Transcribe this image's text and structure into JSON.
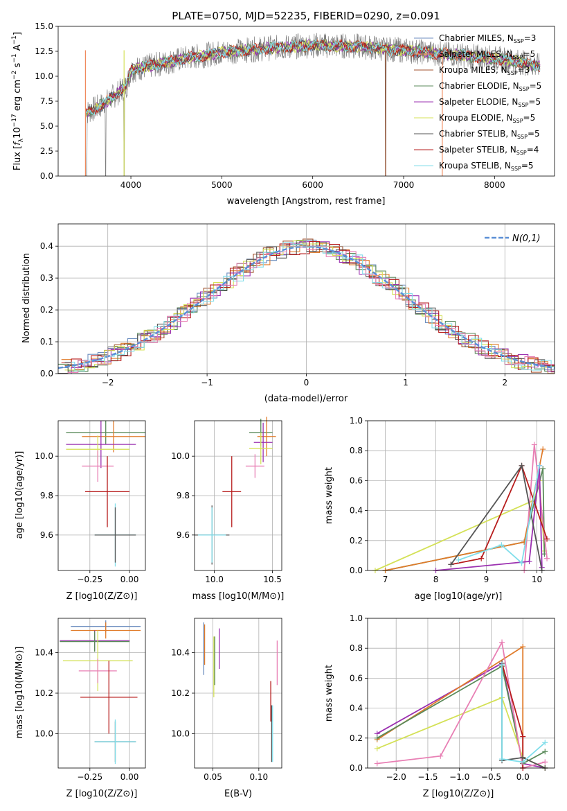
{
  "colors": {
    "chabrier_miles": "#6c8ebf",
    "salpeter_miles": "#f08a5d",
    "kroupa_miles": "#a0522d",
    "chabrier_elodie": "#5a8a5a",
    "salpeter_elodie": "#9b30b0",
    "kroupa_elodie": "#d4e157",
    "chabrier_stelib": "#555555",
    "salpeter_stelib": "#b71c1c",
    "kroupa_stelib": "#80deea",
    "pink": "#e87fb4",
    "orange": "#e07b2a",
    "normal": "#5b8fd6"
  },
  "chart_data": [
    {
      "id": "spectrum",
      "type": "line",
      "title": "PLATE=0750, MJD=52235, FIBERID=0290, z=0.091",
      "xlabel": "wavelength [Angstrom, rest frame]",
      "ylabel": "Flux [f_λ10^-17 erg cm^-2 s^-1 A^-1]",
      "xlim": [
        3200,
        8660
      ],
      "ylim": [
        0,
        15
      ],
      "xticks": [
        4000,
        5000,
        6000,
        7000,
        8000
      ],
      "yticks": [
        0.0,
        2.5,
        5.0,
        7.5,
        10.0,
        12.5,
        15.0
      ],
      "grid": false,
      "legend": "right",
      "continuum": [
        [
          3500,
          6.3
        ],
        [
          3700,
          7.2
        ],
        [
          3950,
          9.0
        ],
        [
          4000,
          10.6
        ],
        [
          4300,
          11.2
        ],
        [
          4600,
          11.8
        ],
        [
          5000,
          12.4
        ],
        [
          5500,
          12.8
        ],
        [
          6000,
          13.1
        ],
        [
          6500,
          13.0
        ],
        [
          7000,
          12.6
        ],
        [
          7500,
          12.2
        ],
        [
          8000,
          11.8
        ],
        [
          8300,
          11.4
        ],
        [
          8500,
          11.0
        ]
      ],
      "series": [
        {
          "name": "Chabrier MILES, N_SSP=3",
          "color_key": "chabrier_miles"
        },
        {
          "name": "Salpeter MILES, N_SSP=5",
          "color_key": "salpeter_miles"
        },
        {
          "name": "Kroupa MILES, N_SSP=3",
          "color_key": "kroupa_miles"
        },
        {
          "name": "Chabrier ELODIE, N_SSP=5",
          "color_key": "chabrier_elodie"
        },
        {
          "name": "Salpeter ELODIE, N_SSP=5",
          "color_key": "salpeter_elodie"
        },
        {
          "name": "Kroupa ELODIE, N_SSP=5",
          "color_key": "kroupa_elodie"
        },
        {
          "name": "Chabrier STELIB, N_SSP=5",
          "color_key": "chabrier_stelib"
        },
        {
          "name": "Salpeter STELIB, N_SSP=4",
          "color_key": "salpeter_stelib"
        },
        {
          "name": "Kroupa STELIB, N_SSP=5",
          "color_key": "kroupa_stelib"
        }
      ]
    },
    {
      "id": "residuals",
      "type": "area",
      "xlabel": "(data-model)/error",
      "ylabel": "Normed distribution",
      "xlim": [
        -2.5,
        2.5
      ],
      "ylim": [
        0,
        0.47
      ],
      "xticks": [
        -2,
        -1,
        0,
        1,
        2
      ],
      "yticks": [
        0.0,
        0.1,
        0.2,
        0.3,
        0.4
      ],
      "grid": true,
      "legend": "top-right",
      "normal_label": "N(0,1)"
    },
    {
      "id": "age_vs_z",
      "type": "scatter",
      "xlabel": "Z [log10(Z/Z⊙)]",
      "ylabel": "age [log10(age/yr)]",
      "xlim": [
        -0.45,
        0.1
      ],
      "ylim": [
        9.42,
        10.18
      ],
      "xticks": [
        -0.25,
        0.0
      ],
      "xtick_labels": [
        "−0.25",
        "0.00"
      ],
      "yticks": [
        9.6,
        9.8,
        10.0
      ],
      "grid": true,
      "points": [
        {
          "x": -0.15,
          "y": 10.12,
          "xerr": 0.25,
          "yerr": 0.06,
          "color_key": "chabrier_elodie"
        },
        {
          "x": -0.1,
          "y": 10.1,
          "xerr": 0.2,
          "yerr": 0.08,
          "color_key": "orange"
        },
        {
          "x": -0.18,
          "y": 10.06,
          "xerr": 0.22,
          "yerr": 0.12,
          "color_key": "salpeter_elodie"
        },
        {
          "x": -0.2,
          "y": 10.035,
          "xerr": 0.2,
          "yerr": 0.07,
          "color_key": "kroupa_elodie"
        },
        {
          "x": -0.2,
          "y": 9.95,
          "xerr": 0.1,
          "yerr": 0.08,
          "color_key": "pink"
        },
        {
          "x": -0.14,
          "y": 9.82,
          "xerr": 0.14,
          "yerr": 0.18,
          "color_key": "salpeter_stelib"
        },
        {
          "x": -0.09,
          "y": 9.6,
          "xerr": 0.13,
          "yerr": 0.16,
          "color_key": "kroupa_stelib"
        },
        {
          "x": -0.09,
          "y": 9.6,
          "xerr": 0.13,
          "yerr": 0.14,
          "color_key": "chabrier_stelib"
        }
      ]
    },
    {
      "id": "age_vs_mass",
      "type": "scatter",
      "xlabel": "mass [log10(M/M⊙)]",
      "xlim": [
        9.83,
        10.58
      ],
      "ylim": [
        9.42,
        10.18
      ],
      "xticks": [
        10.0,
        10.5
      ],
      "xtick_labels": [
        "10.0",
        "10.5"
      ],
      "yticks": [
        9.6,
        9.8,
        10.0
      ],
      "grid": true,
      "points": [
        {
          "x": 10.4,
          "y": 10.12,
          "xerr": 0.1,
          "yerr": 0.07,
          "color_key": "chabrier_elodie"
        },
        {
          "x": 10.45,
          "y": 10.1,
          "xerr": 0.08,
          "yerr": 0.1,
          "color_key": "orange"
        },
        {
          "x": 10.42,
          "y": 10.07,
          "xerr": 0.08,
          "yerr": 0.1,
          "color_key": "salpeter_elodie"
        },
        {
          "x": 10.4,
          "y": 10.04,
          "xerr": 0.1,
          "yerr": 0.08,
          "color_key": "kroupa_elodie"
        },
        {
          "x": 10.35,
          "y": 9.95,
          "xerr": 0.08,
          "yerr": 0.06,
          "color_key": "pink"
        },
        {
          "x": 10.15,
          "y": 9.82,
          "xerr": 0.08,
          "yerr": 0.18,
          "color_key": "salpeter_stelib"
        },
        {
          "x": 9.98,
          "y": 9.6,
          "xerr": 0.15,
          "yerr": 0.15,
          "color_key": "chabrier_stelib"
        },
        {
          "x": 9.98,
          "y": 9.6,
          "xerr": 0.12,
          "yerr": 0.14,
          "color_key": "kroupa_stelib"
        }
      ]
    },
    {
      "id": "weight_vs_age",
      "type": "line",
      "xlabel": "age [log10(age/yr)]",
      "ylabel": "mass weight",
      "xlim": [
        6.65,
        10.35
      ],
      "ylim": [
        0,
        1
      ],
      "xticks": [
        7,
        8,
        9,
        10
      ],
      "yticks": [
        0.0,
        0.2,
        0.4,
        0.6,
        0.8,
        1.0
      ],
      "grid": true,
      "series": [
        {
          "color_key": "kroupa_elodie",
          "x": [
            6.8,
            9.95,
            10.05,
            10.15
          ],
          "y": [
            0.0,
            0.47,
            0.6,
            0.13
          ]
        },
        {
          "color_key": "chabrier_elodie",
          "x": [
            7.0,
            9.75,
            10.12,
            10.15
          ],
          "y": [
            0.0,
            0.19,
            0.68,
            0.11
          ]
        },
        {
          "color_key": "orange",
          "x": [
            7.0,
            9.75,
            10.12
          ],
          "y": [
            0.0,
            0.19,
            0.81
          ]
        },
        {
          "color_key": "pink",
          "x": [
            9.75,
            9.95,
            10.2
          ],
          "y": [
            0.0,
            0.84,
            0.08
          ]
        },
        {
          "color_key": "salpeter_elodie",
          "x": [
            8.0,
            9.85,
            10.05,
            10.1
          ],
          "y": [
            0.0,
            0.06,
            0.7,
            0.02
          ]
        },
        {
          "color_key": "salpeter_stelib",
          "x": [
            8.3,
            8.9,
            9.7,
            10.2
          ],
          "y": [
            0.04,
            0.08,
            0.7,
            0.21
          ]
        },
        {
          "color_key": "chabrier_stelib",
          "x": [
            8.3,
            9.7,
            10.1
          ],
          "y": [
            0.04,
            0.7,
            0.0
          ]
        },
        {
          "color_key": "kroupa_stelib",
          "x": [
            8.45,
            9.3,
            9.7,
            10.05
          ],
          "y": [
            0.07,
            0.17,
            0.05,
            0.7
          ]
        }
      ]
    },
    {
      "id": "mass_vs_z",
      "type": "scatter",
      "xlabel": "Z [log10(Z/Z⊙)]",
      "ylabel": "mass [log10(M/M⊙)]",
      "xlim": [
        -0.45,
        0.1
      ],
      "ylim": [
        9.83,
        10.57
      ],
      "xticks": [
        -0.25,
        0.0
      ],
      "xtick_labels": [
        "−0.25",
        "0.00"
      ],
      "yticks": [
        10.0,
        10.2,
        10.4
      ],
      "grid": true,
      "points": [
        {
          "x": -0.15,
          "y": 10.53,
          "xerr": 0.22,
          "yerr": 0.03,
          "color_key": "chabrier_miles"
        },
        {
          "x": -0.15,
          "y": 10.51,
          "xerr": 0.22,
          "yerr": 0.04,
          "color_key": "orange"
        },
        {
          "x": -0.22,
          "y": 10.46,
          "xerr": 0.22,
          "yerr": 0.05,
          "color_key": "salpeter_elodie"
        },
        {
          "x": -0.22,
          "y": 10.455,
          "xerr": 0.22,
          "yerr": 0.05,
          "color_key": "chabrier_elodie"
        },
        {
          "x": -0.2,
          "y": 10.36,
          "xerr": 0.22,
          "yerr": 0.15,
          "color_key": "kroupa_elodie"
        },
        {
          "x": -0.2,
          "y": 10.31,
          "xerr": 0.12,
          "yerr": 0.06,
          "color_key": "pink"
        },
        {
          "x": -0.13,
          "y": 10.18,
          "xerr": 0.18,
          "yerr": 0.18,
          "color_key": "salpeter_stelib"
        },
        {
          "x": -0.09,
          "y": 9.96,
          "xerr": 0.13,
          "yerr": 0.1,
          "color_key": "chabrier_stelib"
        },
        {
          "x": -0.09,
          "y": 9.96,
          "xerr": 0.13,
          "yerr": 0.11,
          "color_key": "kroupa_stelib"
        }
      ]
    },
    {
      "id": "mass_vs_ebv",
      "type": "scatter",
      "xlabel": "E(B-V)",
      "xlim": [
        0.03,
        0.125
      ],
      "ylim": [
        9.83,
        10.57
      ],
      "xticks": [
        0.05,
        0.1
      ],
      "xtick_labels": [
        "0.05",
        "0.10"
      ],
      "yticks": [
        10.0,
        10.2,
        10.4
      ],
      "grid": true,
      "points": [
        {
          "x": 0.04,
          "y": 10.42,
          "yerr": 0.13,
          "color_key": "chabrier_miles"
        },
        {
          "x": 0.041,
          "y": 10.44,
          "yerr": 0.1,
          "color_key": "orange"
        },
        {
          "x": 0.051,
          "y": 10.33,
          "yerr": 0.15,
          "color_key": "kroupa_elodie"
        },
        {
          "x": 0.052,
          "y": 10.36,
          "yerr": 0.12,
          "color_key": "chabrier_elodie"
        },
        {
          "x": 0.057,
          "y": 10.42,
          "yerr": 0.1,
          "color_key": "salpeter_elodie"
        },
        {
          "x": 0.113,
          "y": 10.16,
          "yerr": 0.1,
          "color_key": "salpeter_stelib"
        },
        {
          "x": 0.114,
          "y": 10.0,
          "yerr": 0.14,
          "color_key": "chabrier_stelib"
        },
        {
          "x": 0.115,
          "y": 10.0,
          "yerr": 0.14,
          "color_key": "kroupa_stelib"
        },
        {
          "x": 0.12,
          "y": 10.35,
          "yerr": 0.11,
          "color_key": "pink"
        }
      ]
    },
    {
      "id": "weight_vs_z",
      "type": "line",
      "xlabel": "Z [log10(Z/Z⊙)]",
      "ylabel": "mass weight",
      "xlim": [
        -2.45,
        0.5
      ],
      "ylim": [
        0,
        1
      ],
      "xticks": [
        -2.0,
        -1.5,
        -1.0,
        -0.5,
        0.0
      ],
      "xtick_labels": [
        "−2.0",
        "−1.5",
        "−1.0",
        "−0.5",
        "0.0"
      ],
      "yticks": [
        0.0,
        0.2,
        0.4,
        0.6,
        0.8,
        1.0
      ],
      "grid": true,
      "series": [
        {
          "color_key": "salpeter_elodie",
          "x": [
            -2.3,
            -0.33,
            0.0,
            0.35
          ],
          "y": [
            0.23,
            0.7,
            0.03,
            0.0
          ]
        },
        {
          "color_key": "orange",
          "x": [
            -2.3,
            0.0,
            0.0
          ],
          "y": [
            0.19,
            0.81,
            0.0
          ]
        },
        {
          "color_key": "chabrier_elodie",
          "x": [
            -2.3,
            -0.33,
            0.0,
            0.35
          ],
          "y": [
            0.2,
            0.68,
            0.03,
            0.11
          ]
        },
        {
          "color_key": "kroupa_elodie",
          "x": [
            -2.3,
            -0.33,
            0.0,
            0.35
          ],
          "y": [
            0.13,
            0.47,
            0.07,
            0.0
          ]
        },
        {
          "color_key": "pink",
          "x": [
            -2.3,
            -1.3,
            -0.33,
            0.0,
            0.35
          ],
          "y": [
            0.03,
            0.08,
            0.84,
            0.0,
            0.04
          ]
        },
        {
          "color_key": "salpeter_stelib",
          "x": [
            -0.33,
            0.0,
            0.0
          ],
          "y": [
            0.7,
            0.21,
            0.0
          ]
        },
        {
          "color_key": "chabrier_stelib",
          "x": [
            -0.33,
            -0.33,
            0.0,
            0.35
          ],
          "y": [
            0.7,
            0.05,
            0.07,
            0.0
          ]
        },
        {
          "color_key": "kroupa_stelib",
          "x": [
            -0.33,
            -0.33,
            0.0,
            0.35
          ],
          "y": [
            0.69,
            0.06,
            0.04,
            0.17
          ]
        }
      ]
    }
  ]
}
